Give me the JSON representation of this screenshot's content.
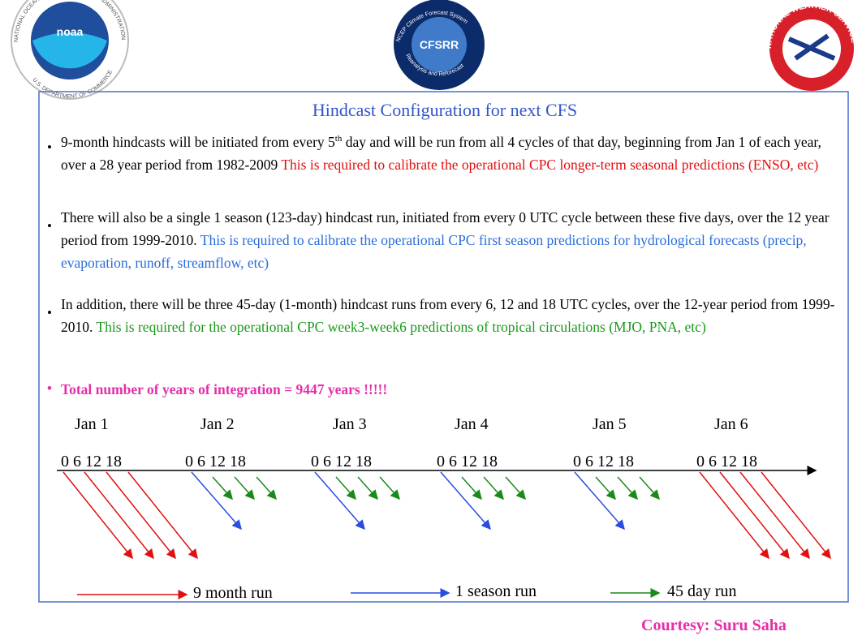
{
  "logos": {
    "noaa": {
      "name": "noaa",
      "ring_top": "NATIONAL OCEANIC AND ATMOSPHERIC ADMINISTRATION",
      "ring_bottom": "U.S. DEPARTMENT OF COMMERCE"
    },
    "cfsrr": {
      "name": "CFSRR",
      "ring_top": "NCEP Climate Forecast System",
      "ring_bottom": "Reanalysis and Reforecast"
    },
    "nws": {
      "ring": "NATIONAL WEATHER SERVICE"
    }
  },
  "title": "Hindcast Configuration for next CFS",
  "bullets": [
    {
      "text_before": "9-month hindcasts will be initiated from every 5",
      "superscript": "th",
      "text": " day and will be run from all 4 cycles of that day, beginning from Jan 1 of each year, over a 28 year period from 1982-2009 ",
      "note": "This is required to calibrate the operational CPC longer-term seasonal predictions (ENSO, etc)"
    },
    {
      "text": "There will also be a single 1 season (123-day) hindcast run, initiated from every 0 UTC cycle between these five days, over the 12 year period from 1999-2010. ",
      "note": "This is required to calibrate the operational CPC first season predictions for hydrological forecasts (precip, evaporation, runoff, streamflow, etc)"
    },
    {
      "text": "In addition, there will be three 45-day (1-month) hindcast runs from every 6, 12 and 18 UTC cycles, over the 12-year period from 1999-2010. ",
      "note": "This is required for the operational CPC week3-week6 predictions of tropical circulations (MJO, PNA, etc)"
    }
  ],
  "total": "Total number of years of integration = 9447 years !!!!!",
  "timeline": {
    "days": [
      {
        "label": "Jan 1",
        "cycles": "0 6 12 18"
      },
      {
        "label": "Jan 2",
        "cycles": "0 6 12 18"
      },
      {
        "label": "Jan 3",
        "cycles": "0 6 12 18"
      },
      {
        "label": "Jan 4",
        "cycles": "0 6 12 18"
      },
      {
        "label": "Jan 5",
        "cycles": "0 6 12 18"
      },
      {
        "label": "Jan 6",
        "cycles": "0 6 12 18"
      }
    ]
  },
  "legend": [
    "9 month run",
    "1 season run",
    "45 day run"
  ],
  "courtesy": "Courtesy: Suru Saha"
}
